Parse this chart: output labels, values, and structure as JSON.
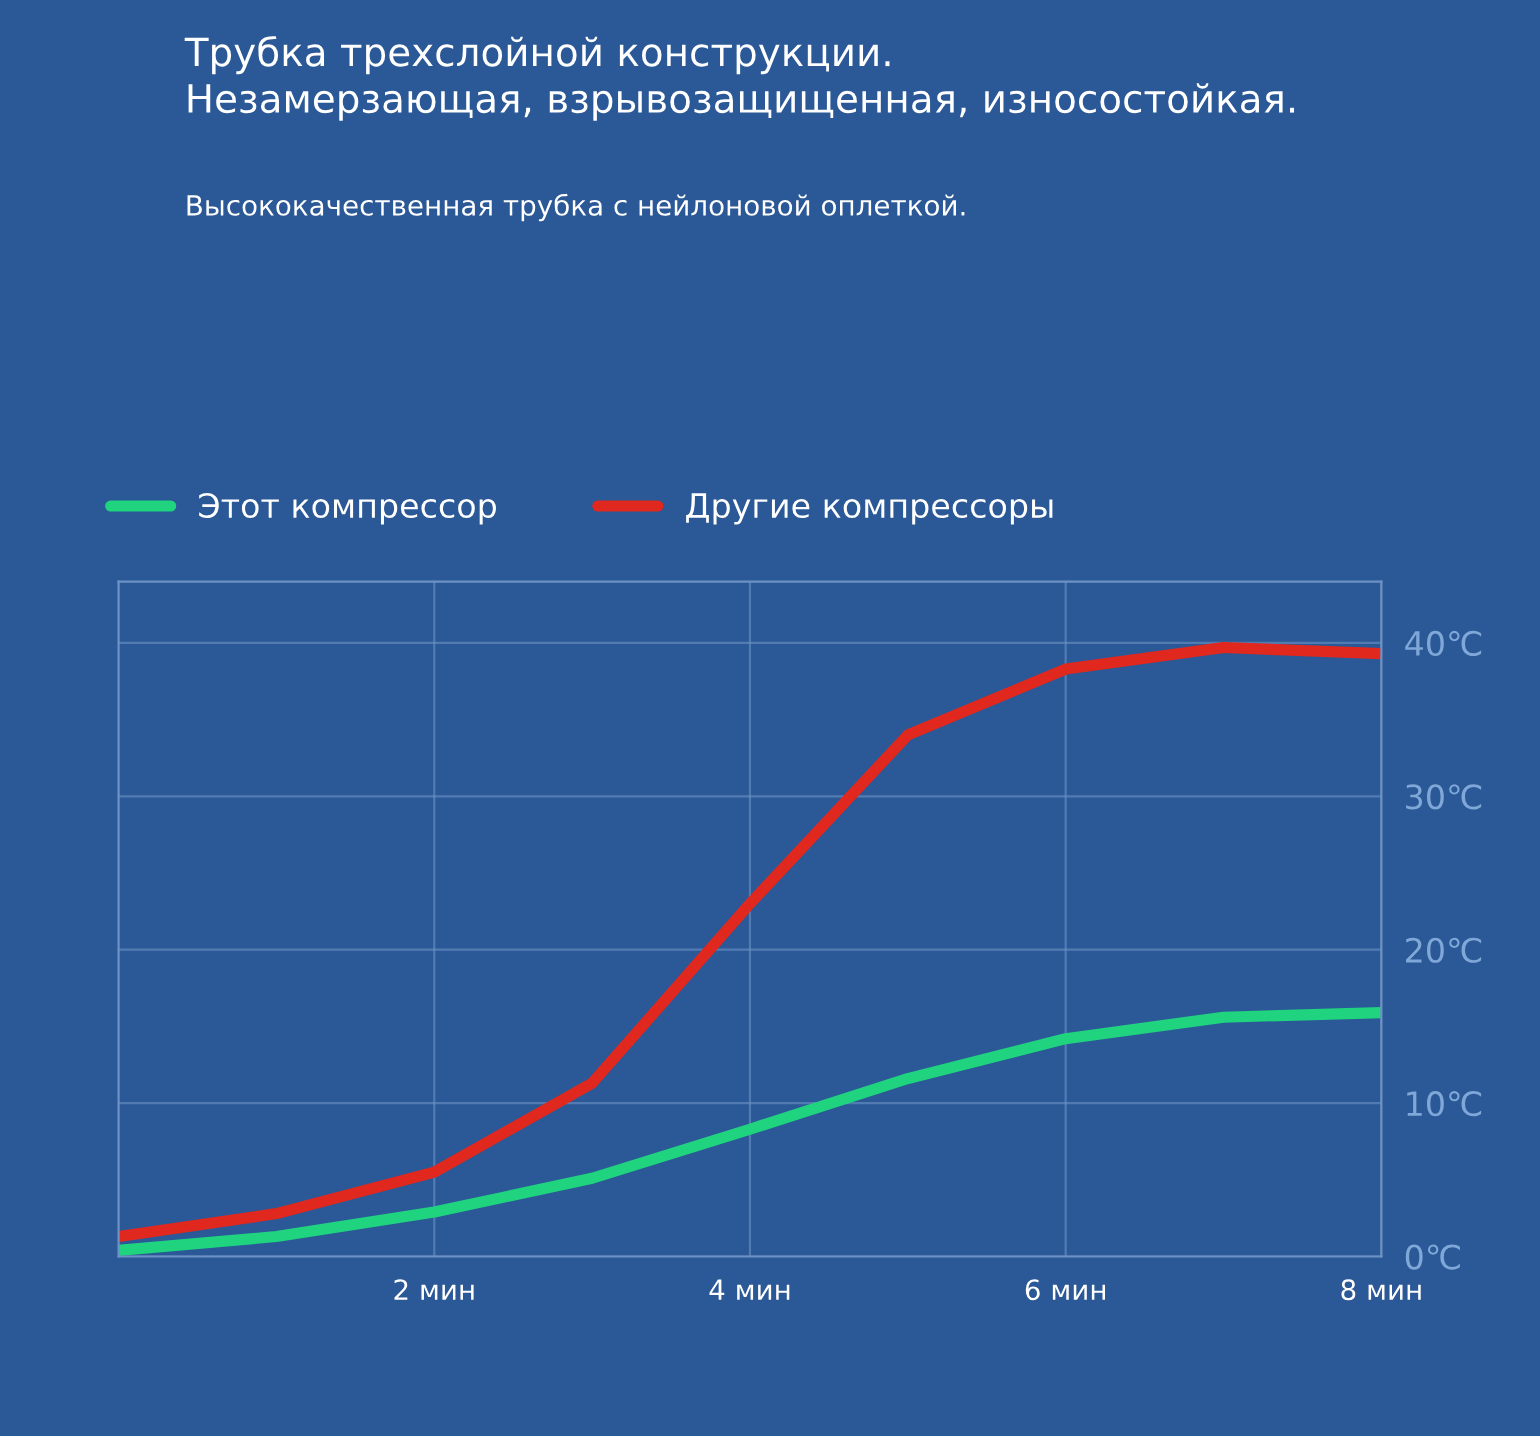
{
  "chart_data": {
    "type": "line",
    "title": "Трубка трехслойной конструкции.\nНезамерзающая, взрывозащищенная, износостойкая.",
    "subtitle": "Высококачественная трубка с нейлоновой оплеткой.",
    "x": [
      0,
      1,
      2,
      3,
      4,
      5,
      6,
      7,
      8
    ],
    "series": [
      {
        "name": "Этот компрессор",
        "color": "#1fd37f",
        "values": [
          0.4,
          1.3,
          2.9,
          5.1,
          8.3,
          11.6,
          14.2,
          15.6,
          15.9
        ]
      },
      {
        "name": "Другие компрессоры",
        "color": "#e0281e",
        "values": [
          1.3,
          2.8,
          5.5,
          11.3,
          23,
          34,
          38.3,
          39.7,
          39.3
        ]
      }
    ],
    "xlim": [
      0,
      8
    ],
    "xticks": [
      {
        "value": 2,
        "label": "2 мин"
      },
      {
        "value": 4,
        "label": "4 мин"
      },
      {
        "value": 6,
        "label": "6 мин"
      },
      {
        "value": 8,
        "label": "8 мин"
      }
    ],
    "ylim": [
      0,
      44
    ],
    "yticks": [
      {
        "value": 0,
        "label": "0℃"
      },
      {
        "value": 10,
        "label": "10℃"
      },
      {
        "value": 20,
        "label": "20℃"
      },
      {
        "value": 30,
        "label": "30℃"
      },
      {
        "value": 40,
        "label": "40℃"
      }
    ],
    "grid": true,
    "legend": "top left",
    "marker": "none",
    "line_style": "solid"
  }
}
